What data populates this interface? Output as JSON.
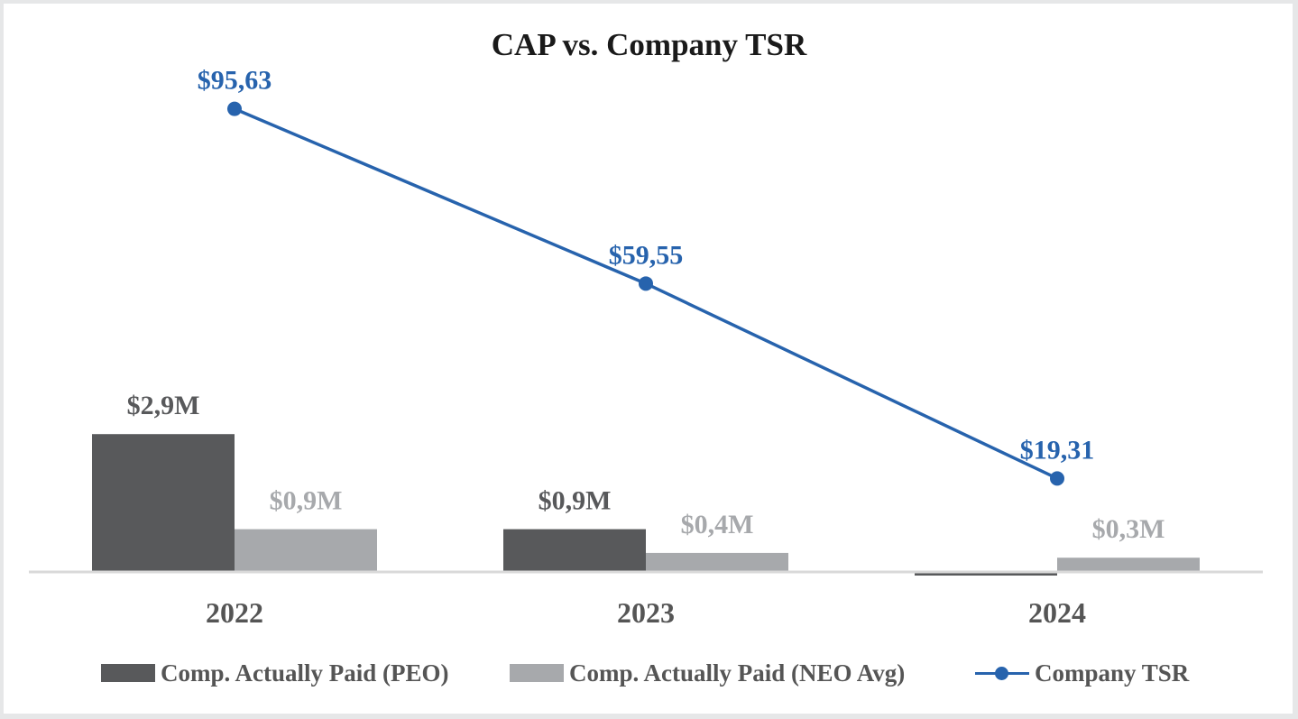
{
  "chart_data": {
    "type": "bar",
    "title": "CAP vs. Company TSR",
    "categories": [
      "2022",
      "2023",
      "2024"
    ],
    "series": [
      {
        "name": "Comp. Actually Paid (PEO)",
        "kind": "bar",
        "color": "#58595b",
        "label_color": "#58595b",
        "values": [
          2.9,
          0.9,
          -0.05
        ],
        "labels": [
          "$2,9M",
          "$0,9M",
          ""
        ]
      },
      {
        "name": "Comp. Actually Paid (NEO Avg)",
        "kind": "bar",
        "color": "#a7a9ac",
        "label_color": "#a7a9ac",
        "values": [
          0.9,
          0.4,
          0.3
        ],
        "labels": [
          "$0,9M",
          "$0,4M",
          "$0,3M"
        ]
      },
      {
        "name": "Company TSR",
        "kind": "line",
        "axis": "secondary",
        "color": "#2763ad",
        "label_color": "#2763ad",
        "values": [
          95.63,
          59.55,
          19.31
        ],
        "labels": [
          "$95,63",
          "$59,55",
          "$19,31"
        ]
      }
    ],
    "xlabel": "",
    "ylabel": "",
    "ylim": [
      0,
      10.8
    ],
    "y2lim": [
      -13.6,
      106
    ],
    "grid": false,
    "legend": "bottom"
  }
}
